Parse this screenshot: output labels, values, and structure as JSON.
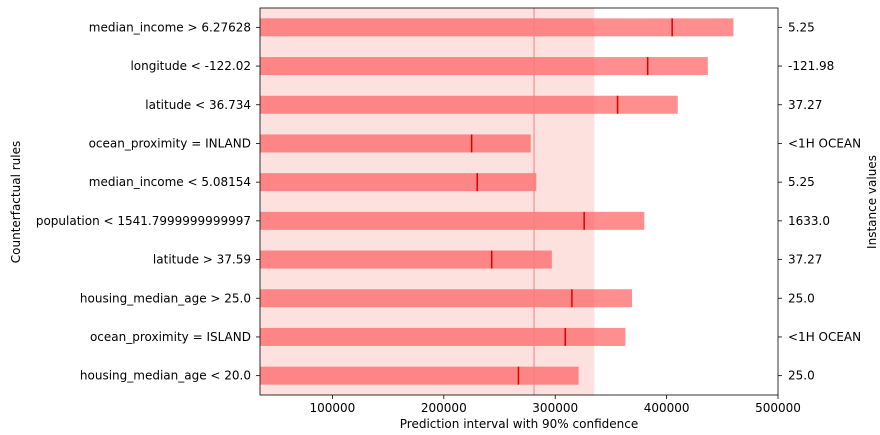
{
  "colors": {
    "interval": "#ff5e5e",
    "interval_opacity": 0.7,
    "band": "#f9c8c4",
    "band_opacity": 0.55,
    "baseline": "#f08080",
    "median": "#e00000"
  },
  "chart_data": {
    "type": "bar",
    "orientation": "horizontal",
    "xlabel": "Prediction interval with 90% confidence",
    "ylabel_left": "Counterfactual rules",
    "ylabel_right": "Instance values",
    "xlim": [
      35000,
      500000
    ],
    "xticks": [
      100000,
      200000,
      300000,
      400000,
      500000
    ],
    "xtick_labels": [
      "100000",
      "200000",
      "300000",
      "400000",
      "500000"
    ],
    "reference": {
      "low": 35000,
      "high": 335000,
      "median": 281000
    },
    "grid": false,
    "categories": [
      "median_income > 6.27628",
      "longitude < -122.02",
      "latitude < 36.734",
      "ocean_proximity = INLAND",
      "median_income < 5.08154",
      "population < 1541.7999999999997",
      "latitude > 37.59",
      "housing_median_age > 25.0",
      "ocean_proximity = ISLAND",
      "housing_median_age < 20.0"
    ],
    "instance_values": [
      "5.25",
      "-121.98",
      "37.27",
      "<1H OCEAN",
      "5.25",
      "1633.0",
      "37.27",
      "25.0",
      "<1H OCEAN",
      "25.0"
    ],
    "intervals": [
      {
        "low": 35000,
        "median": 405000,
        "high": 460000
      },
      {
        "low": 35000,
        "median": 383000,
        "high": 437000
      },
      {
        "low": 35000,
        "median": 356000,
        "high": 410000
      },
      {
        "low": 35000,
        "median": 225000,
        "high": 278000
      },
      {
        "low": 35000,
        "median": 230000,
        "high": 283000
      },
      {
        "low": 35000,
        "median": 326000,
        "high": 380000
      },
      {
        "low": 35000,
        "median": 243000,
        "high": 297000
      },
      {
        "low": 35000,
        "median": 315000,
        "high": 369000
      },
      {
        "low": 35000,
        "median": 309000,
        "high": 363000
      },
      {
        "low": 35000,
        "median": 267000,
        "high": 321000
      }
    ]
  }
}
